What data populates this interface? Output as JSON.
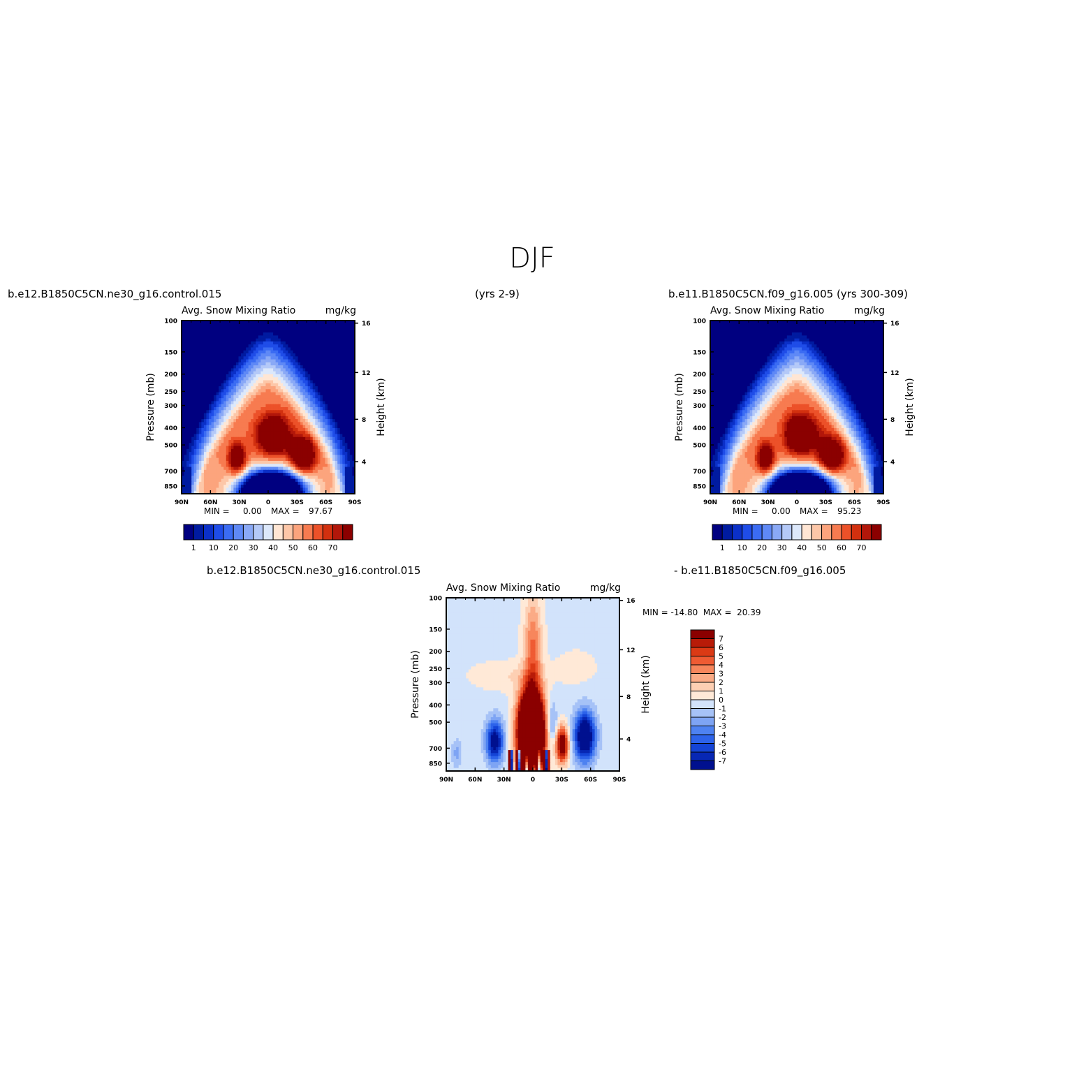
{
  "page": {
    "title": "DJF",
    "left_case": "b.e12.B1850C5CN.ne30_g16.control.015",
    "years_left": "(yrs 2-9)",
    "right_case": "b.e11.B1850C5CN.f09_g16.005 (yrs 300-309)",
    "diff_left": "b.e12.B1850C5CN.ne30_g16.control.015",
    "diff_right": "- b.e11.B1850C5CN.f09_g16.005"
  },
  "colors": {
    "main_scale": [
      "#000080",
      "#001ba0",
      "#0b30c8",
      "#1f4de8",
      "#3b6cf3",
      "#5f89f6",
      "#8aa9f6",
      "#b4c9f8",
      "#dce8fb",
      "#ffe6d4",
      "#fdc7a8",
      "#fca47d",
      "#f77b50",
      "#ec5129",
      "#d2300f",
      "#b2170a",
      "#8b0000"
    ],
    "diff_scale": [
      "#00108f",
      "#0727b4",
      "#1444d6",
      "#2d63ea",
      "#4e82f1",
      "#7ea4f4",
      "#a6c2f7",
      "#d2e3fb",
      "#ffe9d7",
      "#fdcfb3",
      "#fbab86",
      "#f7865c",
      "#ef5b33",
      "#db3a15",
      "#b81b08",
      "#8b0000"
    ]
  },
  "chart_data": [
    {
      "type": "heatmap",
      "name": "panel-left",
      "title_left": "Avg. Snow Mixing Ratio",
      "title_right": "mg/kg",
      "ylabel": "Pressure (mb)",
      "ylabel_right": "Height (km)",
      "x_ticks": [
        "90N",
        "60N",
        "30N",
        "0",
        "30S",
        "60S",
        "90S"
      ],
      "y_ticks": [
        "100",
        "150",
        "200",
        "250",
        "300",
        "400",
        "500",
        "700",
        "850"
      ],
      "y_ticks_right": [
        "16",
        "12",
        "8",
        "4"
      ],
      "min_label": "MIN =",
      "min_value": "0.00",
      "max_label": "MAX =",
      "max_value": "97.67",
      "min": 0.0,
      "max": 97.67,
      "colorbar_labels": [
        "1",
        "10",
        "20",
        "30",
        "40",
        "50",
        "60",
        "70"
      ]
    },
    {
      "type": "heatmap",
      "name": "panel-right",
      "title_left": "Avg. Snow Mixing Ratio",
      "title_right": "mg/kg",
      "ylabel": "Pressure (mb)",
      "ylabel_right": "Height (km)",
      "x_ticks": [
        "90N",
        "60N",
        "30N",
        "0",
        "30S",
        "60S",
        "90S"
      ],
      "y_ticks": [
        "100",
        "150",
        "200",
        "250",
        "300",
        "400",
        "500",
        "700",
        "850"
      ],
      "y_ticks_right": [
        "16",
        "12",
        "8",
        "4"
      ],
      "min_label": "MIN =",
      "min_value": "0.00",
      "max_label": "MAX =",
      "max_value": "95.23",
      "min": 0.0,
      "max": 95.23,
      "colorbar_labels": [
        "1",
        "10",
        "20",
        "30",
        "40",
        "50",
        "60",
        "70"
      ]
    },
    {
      "type": "heatmap",
      "name": "panel-diff",
      "title_left": "Avg. Snow Mixing Ratio",
      "title_right": "mg/kg",
      "ylabel": "Pressure (mb)",
      "ylabel_right": "Height (km)",
      "x_ticks": [
        "90N",
        "60N",
        "30N",
        "0",
        "30S",
        "60S",
        "90S"
      ],
      "y_ticks": [
        "100",
        "150",
        "200",
        "250",
        "300",
        "400",
        "500",
        "700",
        "850"
      ],
      "y_ticks_right": [
        "16",
        "12",
        "8",
        "4"
      ],
      "minmax_text": "MIN = -14.80  MAX =  20.39",
      "min": -14.8,
      "max": 20.39,
      "colorbar_labels": [
        "7",
        "6",
        "5",
        "4",
        "3",
        "2",
        "1",
        "0",
        "-1",
        "-2",
        "-3",
        "-4",
        "-5",
        "-6",
        "-7"
      ]
    }
  ]
}
